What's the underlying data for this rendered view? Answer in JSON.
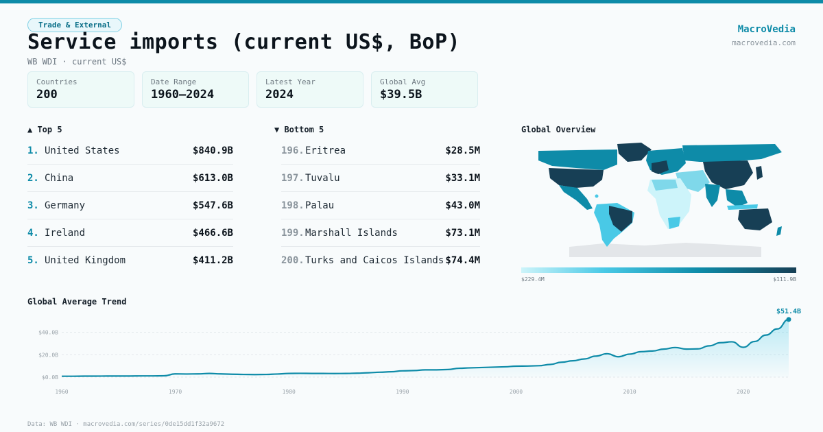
{
  "header": {
    "badge": "Trade & External",
    "title": "Service imports (current US$, BoP)",
    "subtitle": "WB WDI · current US$",
    "brand": "MacroVedia",
    "brand_url": "macrovedia.com"
  },
  "stats": [
    {
      "label": "Countries",
      "value": "200"
    },
    {
      "label": "Date Range",
      "value": "1960–2024"
    },
    {
      "label": "Latest Year",
      "value": "2024"
    },
    {
      "label": "Global Avg",
      "value": "$39.5B"
    }
  ],
  "top5": {
    "heading": "▲ Top 5",
    "rows": [
      {
        "rank": "1.",
        "name": "United States",
        "value": "$840.9B"
      },
      {
        "rank": "2.",
        "name": "China",
        "value": "$613.0B"
      },
      {
        "rank": "3.",
        "name": "Germany",
        "value": "$547.6B"
      },
      {
        "rank": "4.",
        "name": "Ireland",
        "value": "$466.6B"
      },
      {
        "rank": "5.",
        "name": "United Kingdom",
        "value": "$411.2B"
      }
    ]
  },
  "bottom5": {
    "heading": "▼ Bottom 5",
    "rows": [
      {
        "rank": "196.",
        "name": "Eritrea",
        "value": "$28.5M"
      },
      {
        "rank": "197.",
        "name": "Tuvalu",
        "value": "$33.1M"
      },
      {
        "rank": "198.",
        "name": "Palau",
        "value": "$43.0M"
      },
      {
        "rank": "199.",
        "name": "Marshall Islands",
        "value": "$73.1M"
      },
      {
        "rank": "200.",
        "name": "Turks and Caicos Islands",
        "value": "$74.4M"
      }
    ]
  },
  "map": {
    "heading": "Global Overview",
    "legend_min": "$229.4M",
    "legend_max": "$111.9B",
    "colors": {
      "low": "#cdf4fa",
      "mid": "#0e8ba8",
      "high": "#173f55",
      "nodata": "#e3e6e9"
    }
  },
  "trend": {
    "heading": "Global Average Trend"
  },
  "footer": "Data: WB WDI · macrovedia.com/series/0de15dd1f32a9672",
  "chart_data": {
    "type": "area",
    "title": "Global Average Trend",
    "x": [
      1960,
      1961,
      1962,
      1963,
      1964,
      1965,
      1966,
      1967,
      1968,
      1969,
      1970,
      1971,
      1972,
      1973,
      1974,
      1975,
      1976,
      1977,
      1978,
      1979,
      1980,
      1981,
      1982,
      1983,
      1984,
      1985,
      1986,
      1987,
      1988,
      1989,
      1990,
      1991,
      1992,
      1993,
      1994,
      1995,
      1996,
      1997,
      1998,
      1999,
      2000,
      2001,
      2002,
      2003,
      2004,
      2005,
      2006,
      2007,
      2008,
      2009,
      2010,
      2011,
      2012,
      2013,
      2014,
      2015,
      2016,
      2017,
      2018,
      2019,
      2020,
      2021,
      2022,
      2023,
      2024
    ],
    "y": [
      0.8,
      0.8,
      0.9,
      0.9,
      1.0,
      1.0,
      1.0,
      1.1,
      1.1,
      1.2,
      2.9,
      2.8,
      2.9,
      3.3,
      2.9,
      2.6,
      2.4,
      2.3,
      2.4,
      2.8,
      3.3,
      3.4,
      3.3,
      3.3,
      3.2,
      3.3,
      3.5,
      3.9,
      4.4,
      4.8,
      5.6,
      5.9,
      6.5,
      6.5,
      6.8,
      7.9,
      8.3,
      8.6,
      8.9,
      9.2,
      9.8,
      9.9,
      10.2,
      11.3,
      13.3,
      14.6,
      16.2,
      18.7,
      20.9,
      18.2,
      20.5,
      22.7,
      23.3,
      25.0,
      26.4,
      25.0,
      25.2,
      27.9,
      30.7,
      31.5,
      26.6,
      31.8,
      37.5,
      43.0,
      51.4
    ],
    "y_unit": "B",
    "xlabel": "",
    "ylabel": "",
    "xticks": [
      "1960",
      "1970",
      "1980",
      "1990",
      "2000",
      "2010",
      "2020"
    ],
    "yticks": [
      "$0.0B",
      "$20.0B",
      "$40.0B"
    ],
    "ylim": [
      0,
      55
    ],
    "last_label": "$51.4B",
    "line_color": "#0e8ba8"
  }
}
